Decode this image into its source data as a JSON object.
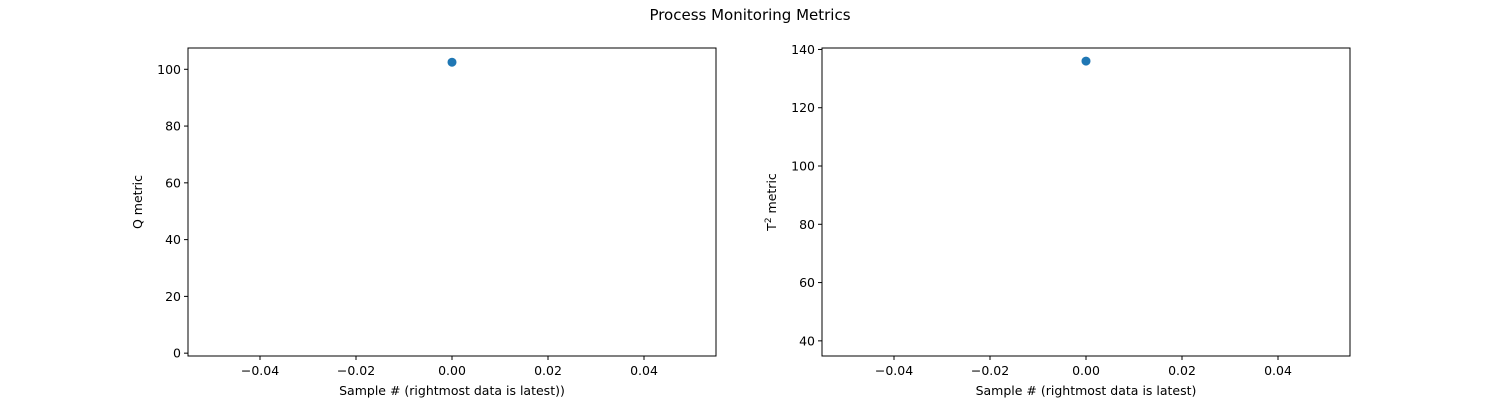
{
  "figure": {
    "title": "Process Monitoring Metrics"
  },
  "chart_data": [
    {
      "type": "scatter",
      "title": "",
      "xlabel": "Sample # (rightmost data is latest))",
      "ylabel": "Q metric",
      "ylabel_sup": "",
      "xlim": [
        -0.055,
        0.055
      ],
      "ylim": [
        -1.0,
        107.5
      ],
      "xticks": [
        -0.04,
        -0.02,
        0.0,
        0.02,
        0.04
      ],
      "xtick_labels": [
        "−0.04",
        "−0.02",
        "0.00",
        "0.02",
        "0.04"
      ],
      "yticks": [
        0,
        20,
        40,
        60,
        80,
        100
      ],
      "ytick_labels": [
        "0",
        "20",
        "40",
        "60",
        "80",
        "100"
      ],
      "grid": false,
      "series": [
        {
          "x": [
            0.0
          ],
          "y": [
            102.5
          ],
          "color": "#1f77b4"
        }
      ]
    },
    {
      "type": "scatter",
      "title": "",
      "xlabel": "Sample # (rightmost data is latest)",
      "ylabel": "T",
      "ylabel_sup": "2",
      "ylabel_rest": " metric",
      "xlim": [
        -0.055,
        0.055
      ],
      "ylim": [
        34.8,
        140.5
      ],
      "xticks": [
        -0.04,
        -0.02,
        0.0,
        0.02,
        0.04
      ],
      "xtick_labels": [
        "−0.04",
        "−0.02",
        "0.00",
        "0.02",
        "0.04"
      ],
      "yticks": [
        40,
        60,
        80,
        100,
        120,
        140
      ],
      "ytick_labels": [
        "40",
        "60",
        "80",
        "100",
        "120",
        "140"
      ],
      "grid": false,
      "series": [
        {
          "x": [
            0.0
          ],
          "y": [
            136.0
          ],
          "color": "#1f77b4"
        }
      ]
    }
  ]
}
